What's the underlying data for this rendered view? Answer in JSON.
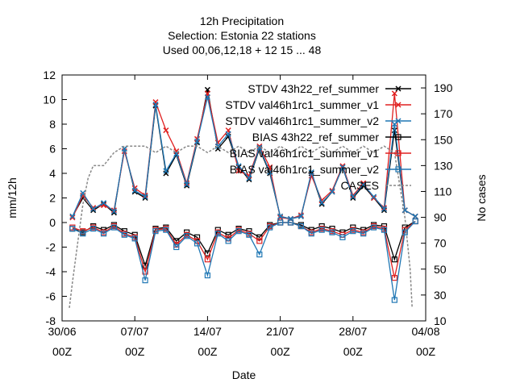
{
  "chart_data": {
    "type": "line",
    "title_lines": [
      "12h Precipitation",
      "Selection: Estonia      22 stations",
      "Used  00,06,12,18  + 12 15 ... 48"
    ],
    "xlabel": "Date",
    "ylabel": "mm/12h",
    "y2label": "No cases",
    "xlim": [
      0,
      35
    ],
    "ylim": [
      -8,
      12
    ],
    "y2lim": [
      10,
      200
    ],
    "x_ticks": [
      {
        "x": 0,
        "line1": "30/06",
        "line2": "00Z"
      },
      {
        "x": 7,
        "line1": "07/07",
        "line2": "00Z"
      },
      {
        "x": 14,
        "line1": "14/07",
        "line2": "00Z"
      },
      {
        "x": 21,
        "line1": "21/07",
        "line2": "00Z"
      },
      {
        "x": 28,
        "line1": "28/07",
        "line2": "00Z"
      },
      {
        "x": 35,
        "line1": "04/08",
        "line2": "00Z"
      }
    ],
    "y_ticks": [
      -8,
      -6,
      -4,
      -2,
      0,
      2,
      4,
      6,
      8,
      10,
      12
    ],
    "y2_ticks": [
      10,
      30,
      50,
      70,
      90,
      110,
      130,
      150,
      170,
      190
    ],
    "legend_position": "top-right",
    "series": [
      {
        "name": "STDV 43h22_ref_summer",
        "color": "#000000",
        "marker": "x",
        "axis": "y",
        "x": [
          1,
          2,
          3,
          4,
          5,
          6,
          7,
          8,
          9,
          10,
          11,
          12,
          13,
          14,
          15,
          16,
          17,
          18,
          19,
          20,
          21,
          22,
          23,
          24,
          25,
          26,
          27,
          28,
          29,
          30,
          31,
          32,
          33,
          34
        ],
        "y": [
          0.5,
          2.0,
          1.0,
          1.5,
          0.8,
          6.0,
          2.5,
          2.0,
          9.5,
          4.0,
          5.5,
          3.0,
          6.5,
          10.8,
          6.0,
          7.0,
          4.5,
          3.5,
          6.0,
          4.0,
          0.5,
          0.3,
          0.5,
          4.0,
          1.5,
          2.5,
          4.5,
          2.0,
          3.0,
          2.0,
          1.0,
          7.5,
          1.0,
          0.5
        ]
      },
      {
        "name": "STDV val46h1rc1_summer_v1",
        "color": "#e02020",
        "marker": "x",
        "axis": "y",
        "x": [
          1,
          2,
          3,
          4,
          5,
          6,
          7,
          8,
          9,
          10,
          11,
          12,
          13,
          14,
          15,
          16,
          17,
          18,
          19,
          20,
          21,
          22,
          23,
          24,
          25,
          26,
          27,
          28,
          29,
          30,
          31,
          32,
          33,
          34
        ],
        "y": [
          0.4,
          2.2,
          1.2,
          1.4,
          1.0,
          5.8,
          2.8,
          2.2,
          9.8,
          7.5,
          5.8,
          3.2,
          6.8,
          10.5,
          6.5,
          7.5,
          4.2,
          3.8,
          6.2,
          4.5,
          0.4,
          0.3,
          0.6,
          3.8,
          1.8,
          2.6,
          4.6,
          2.2,
          3.2,
          2.0,
          1.2,
          10.5,
          1.0,
          0.5
        ]
      },
      {
        "name": "STDV val46h1rc1_summer_v2",
        "color": "#1f77b4",
        "marker": "x",
        "axis": "y",
        "x": [
          1,
          2,
          3,
          4,
          5,
          6,
          7,
          8,
          9,
          10,
          11,
          12,
          13,
          14,
          15,
          16,
          17,
          18,
          19,
          20,
          21,
          22,
          23,
          24,
          25,
          26,
          27,
          28,
          29,
          30,
          31,
          32,
          33,
          34
        ],
        "y": [
          0.5,
          2.4,
          1.1,
          1.6,
          0.9,
          6.0,
          2.6,
          2.1,
          9.6,
          4.2,
          5.6,
          3.1,
          6.6,
          10.2,
          6.2,
          7.2,
          4.6,
          3.6,
          6.1,
          4.1,
          0.5,
          0.3,
          0.5,
          4.1,
          1.6,
          2.5,
          4.5,
          2.1,
          3.1,
          2.1,
          1.1,
          8.0,
          1.0,
          0.5
        ]
      },
      {
        "name": "BIAS 43h22_ref_summer",
        "color": "#000000",
        "marker": "square",
        "axis": "y",
        "x": [
          1,
          2,
          3,
          4,
          5,
          6,
          7,
          8,
          9,
          10,
          11,
          12,
          13,
          14,
          15,
          16,
          17,
          18,
          19,
          20,
          21,
          22,
          23,
          24,
          25,
          26,
          27,
          28,
          29,
          30,
          31,
          32,
          33,
          34
        ],
        "y": [
          -0.5,
          -0.8,
          -0.3,
          -0.6,
          -0.2,
          -0.7,
          -1.0,
          -3.5,
          -0.5,
          -0.4,
          -1.5,
          -0.8,
          -1.2,
          -2.5,
          -0.6,
          -1.0,
          -0.5,
          -0.7,
          -1.2,
          -0.2,
          0.0,
          0.0,
          -0.2,
          -0.6,
          -0.3,
          -0.5,
          -0.8,
          -0.4,
          -0.6,
          -0.2,
          -0.3,
          -3.0,
          -0.4,
          0.1
        ]
      },
      {
        "name": "BIAS val46h1rc1_summer_v1",
        "color": "#e02020",
        "marker": "square",
        "axis": "y",
        "x": [
          1,
          2,
          3,
          4,
          5,
          6,
          7,
          8,
          9,
          10,
          11,
          12,
          13,
          14,
          15,
          16,
          17,
          18,
          19,
          20,
          21,
          22,
          23,
          24,
          25,
          26,
          27,
          28,
          29,
          30,
          31,
          32,
          33,
          34
        ],
        "y": [
          -0.4,
          -0.7,
          -0.4,
          -0.8,
          -0.3,
          -0.9,
          -1.2,
          -4.0,
          -0.6,
          -0.5,
          -1.8,
          -1.0,
          -1.5,
          -3.0,
          -0.8,
          -1.3,
          -0.6,
          -0.9,
          -1.5,
          -0.3,
          0.0,
          0.0,
          -0.3,
          -0.8,
          -0.5,
          -0.7,
          -1.0,
          -0.6,
          -0.8,
          -0.3,
          -0.5,
          -4.5,
          -0.6,
          0.1
        ]
      },
      {
        "name": "BIAS val46h1rc1_summer_v2",
        "color": "#1f77b4",
        "marker": "square",
        "axis": "y",
        "x": [
          1,
          2,
          3,
          4,
          5,
          6,
          7,
          8,
          9,
          10,
          11,
          12,
          13,
          14,
          15,
          16,
          17,
          18,
          19,
          20,
          21,
          22,
          23,
          24,
          25,
          26,
          27,
          28,
          29,
          30,
          31,
          32,
          33,
          34
        ],
        "y": [
          -0.5,
          -0.9,
          -0.5,
          -0.9,
          -0.4,
          -1.0,
          -1.3,
          -4.7,
          -0.7,
          -0.6,
          -2.0,
          -1.1,
          -1.7,
          -4.3,
          -0.9,
          -1.5,
          -0.7,
          -1.0,
          -2.6,
          -0.4,
          0.0,
          0.0,
          -0.3,
          -0.9,
          -0.6,
          -0.8,
          -1.2,
          -0.7,
          -0.9,
          -0.4,
          -0.6,
          -6.3,
          -0.8,
          0.1
        ]
      },
      {
        "name": "CASES",
        "color": "#888888",
        "marker": "none",
        "axis": "y2",
        "x": [
          0.7,
          1,
          1.5,
          2,
          2.5,
          3,
          4,
          5,
          6,
          7,
          8,
          9,
          10,
          11,
          12,
          13,
          14,
          15,
          16,
          17,
          18,
          19,
          20,
          21,
          22,
          23,
          24,
          25,
          26,
          27,
          28,
          29,
          30,
          31,
          32,
          33,
          33.5,
          33.7
        ],
        "y": [
          20,
          40,
          70,
          100,
          120,
          130,
          130,
          140,
          145,
          145,
          145,
          140,
          145,
          140,
          145,
          145,
          140,
          145,
          140,
          145,
          140,
          145,
          140,
          145,
          140,
          145,
          140,
          145,
          140,
          145,
          140,
          145,
          140,
          145,
          140,
          90,
          50,
          20
        ]
      }
    ]
  }
}
